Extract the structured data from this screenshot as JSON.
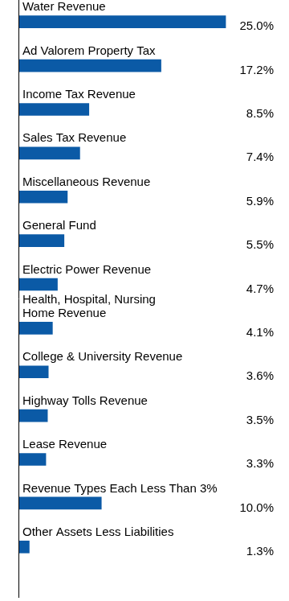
{
  "chart_data": {
    "type": "bar",
    "orientation": "horizontal",
    "categories": [
      "Water Revenue",
      "Ad Valorem Property Tax",
      "Income Tax Revenue",
      "Sales Tax Revenue",
      "Miscellaneous Revenue",
      "General Fund",
      "Electric Power Revenue",
      [
        "Health, Hospital, Nursing",
        "Home Revenue"
      ],
      "College & University Revenue",
      "Highway Tolls Revenue",
      "Lease Revenue",
      "Revenue Types Each Less Than 3%",
      "Other Assets Less Liabilities"
    ],
    "values": [
      25.0,
      17.2,
      8.5,
      7.4,
      5.9,
      5.5,
      4.7,
      4.1,
      3.6,
      3.5,
      3.3,
      10.0,
      1.3
    ],
    "value_labels": [
      "25.0%",
      "17.2%",
      "8.5%",
      "7.4%",
      "5.9%",
      "5.5%",
      "4.7%",
      "4.1%",
      "3.6%",
      "3.5%",
      "3.3%",
      "10.0%",
      "1.3%"
    ],
    "color": "#0b5aa6",
    "xlim": [
      0,
      31
    ],
    "grid": false,
    "data_labels": true,
    "tick_labels": false
  }
}
